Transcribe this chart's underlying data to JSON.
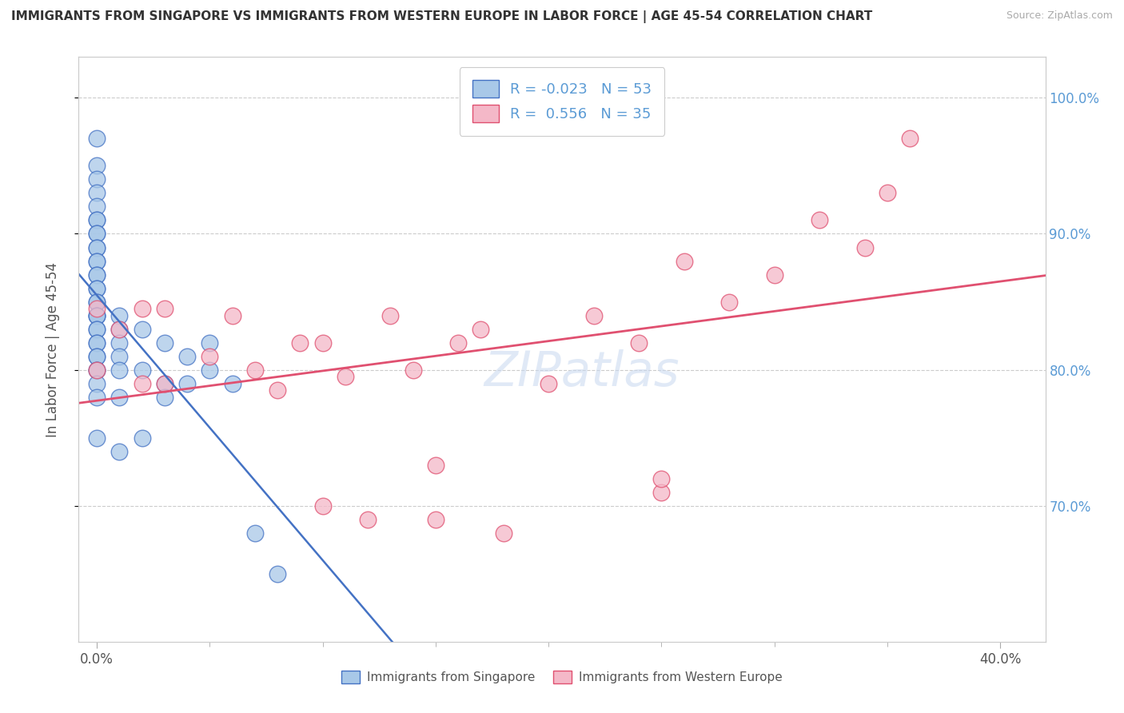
{
  "title": "IMMIGRANTS FROM SINGAPORE VS IMMIGRANTS FROM WESTERN EUROPE IN LABOR FORCE | AGE 45-54 CORRELATION CHART",
  "source": "Source: ZipAtlas.com",
  "ylabel": "In Labor Force | Age 45-54",
  "R_singapore": -0.023,
  "N_singapore": 53,
  "R_western_europe": 0.556,
  "N_western_europe": 35,
  "color_singapore": "#a8c8e8",
  "color_western_europe": "#f4b8c8",
  "trendline_singapore_color": "#4472c4",
  "trendline_western_europe_color": "#e05070",
  "watermark": "ZIPatlas",
  "singapore_x": [
    0.0,
    0.0,
    0.0,
    0.0,
    0.0,
    0.0,
    0.0,
    0.0,
    0.0,
    0.0,
    0.0,
    0.0,
    0.0,
    0.0,
    0.0,
    0.0,
    0.0,
    0.0,
    0.0,
    0.0,
    0.0,
    0.0,
    0.0,
    0.0,
    0.0,
    0.0,
    0.0,
    0.0,
    0.0,
    0.0,
    0.0,
    0.0,
    0.0,
    0.01,
    0.01,
    0.01,
    0.01,
    0.01,
    0.01,
    0.01,
    0.02,
    0.02,
    0.02,
    0.03,
    0.03,
    0.03,
    0.04,
    0.04,
    0.05,
    0.05,
    0.06,
    0.07,
    0.08
  ],
  "singapore_y": [
    0.97,
    0.95,
    0.94,
    0.93,
    0.92,
    0.91,
    0.91,
    0.9,
    0.9,
    0.89,
    0.89,
    0.88,
    0.88,
    0.87,
    0.87,
    0.86,
    0.86,
    0.85,
    0.85,
    0.84,
    0.84,
    0.84,
    0.83,
    0.83,
    0.82,
    0.82,
    0.81,
    0.81,
    0.8,
    0.8,
    0.79,
    0.78,
    0.75,
    0.84,
    0.83,
    0.82,
    0.81,
    0.8,
    0.78,
    0.74,
    0.83,
    0.8,
    0.75,
    0.82,
    0.79,
    0.78,
    0.81,
    0.79,
    0.82,
    0.8,
    0.79,
    0.68,
    0.65
  ],
  "western_europe_x": [
    0.0,
    0.0,
    0.01,
    0.02,
    0.02,
    0.03,
    0.03,
    0.05,
    0.06,
    0.07,
    0.08,
    0.09,
    0.1,
    0.11,
    0.12,
    0.13,
    0.14,
    0.15,
    0.16,
    0.17,
    0.18,
    0.2,
    0.22,
    0.24,
    0.25,
    0.26,
    0.28,
    0.3,
    0.32,
    0.34,
    0.35,
    0.36,
    0.1,
    0.15,
    0.25
  ],
  "western_europe_y": [
    0.845,
    0.8,
    0.83,
    0.845,
    0.79,
    0.845,
    0.79,
    0.81,
    0.84,
    0.8,
    0.785,
    0.82,
    0.82,
    0.795,
    0.69,
    0.84,
    0.8,
    0.73,
    0.82,
    0.83,
    0.68,
    0.79,
    0.84,
    0.82,
    0.71,
    0.88,
    0.85,
    0.87,
    0.91,
    0.89,
    0.93,
    0.97,
    0.7,
    0.69,
    0.72
  ],
  "ytick_values": [
    0.7,
    0.8,
    0.9,
    1.0
  ],
  "ytick_labels": [
    "70.0%",
    "80.0%",
    "90.0%",
    "100.0%"
  ],
  "xtick_values": [
    0.0,
    0.4
  ],
  "xtick_labels": [
    "0.0%",
    "40.0%"
  ],
  "ylim_min": 0.6,
  "ylim_max": 1.03,
  "xlim_min": -0.008,
  "xlim_max": 0.42
}
